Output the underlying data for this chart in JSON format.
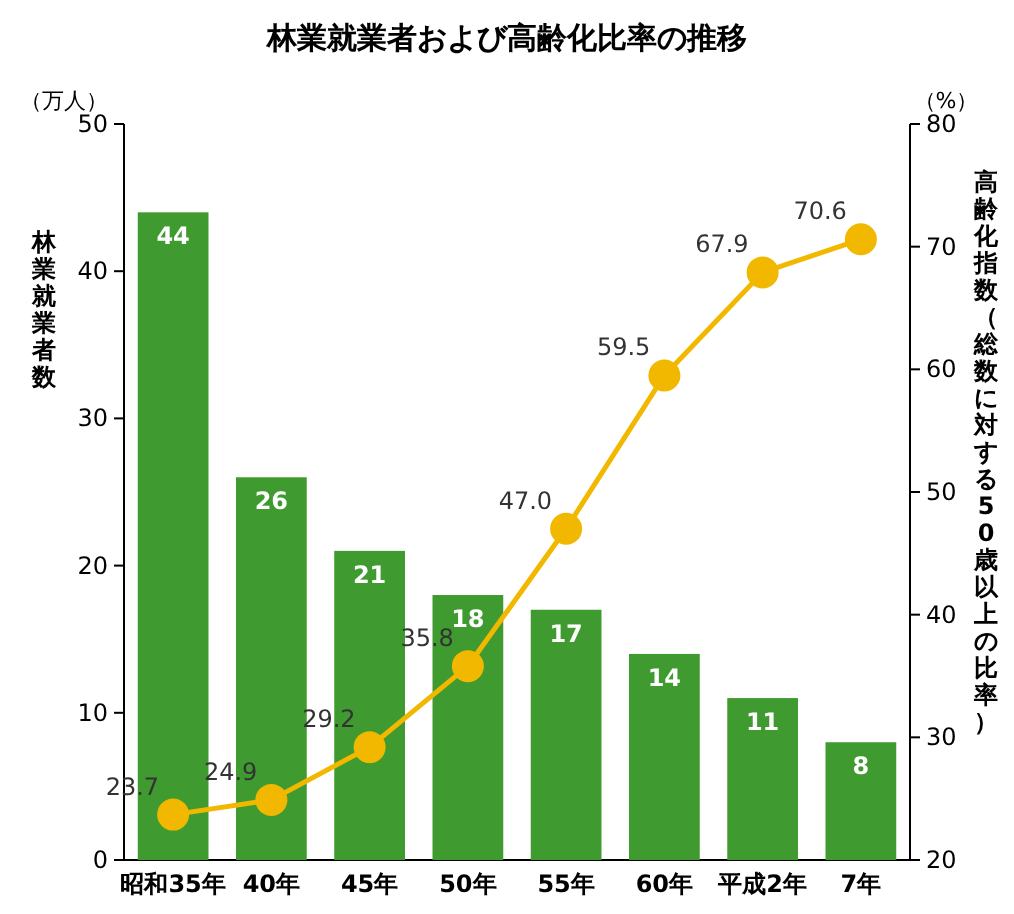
{
  "chart_data": {
    "type": "bar",
    "title": "林業就業者および高齢化比率の推移",
    "ylabel": "林業就業者数",
    "y2label": "高齢化指数（総数に対する50歳以上の比率）",
    "annotations": [
      "（万人）",
      "（%）"
    ],
    "categories": [
      "昭和35年",
      "40年",
      "45年",
      "50年",
      "55年",
      "60年",
      "平成2年",
      "7年"
    ],
    "series": [
      {
        "color": "#3f9a2f",
        "values": [
          44,
          26,
          21,
          18,
          17,
          14,
          11,
          8
        ],
        "value_labels": [
          "44",
          "26",
          "21",
          "18",
          "17",
          "14",
          "11",
          "8"
        ]
      },
      {
        "type": "line",
        "axis": "y2",
        "color": "#f2b800",
        "marker": "circle",
        "values": [
          23.7,
          24.9,
          29.2,
          35.8,
          47.0,
          59.5,
          67.9,
          70.6
        ],
        "value_labels": [
          "23.7",
          "24.9",
          "29.2",
          "35.8",
          "47.0",
          "59.5",
          "67.9",
          "70.6"
        ]
      }
    ],
    "ylim": [
      0,
      50
    ],
    "yticks": [
      0,
      10,
      20,
      30,
      40,
      50
    ],
    "y2lim": [
      20,
      80
    ],
    "y2ticks": [
      20,
      30,
      40,
      50,
      60,
      70,
      80
    ],
    "grid": false
  }
}
